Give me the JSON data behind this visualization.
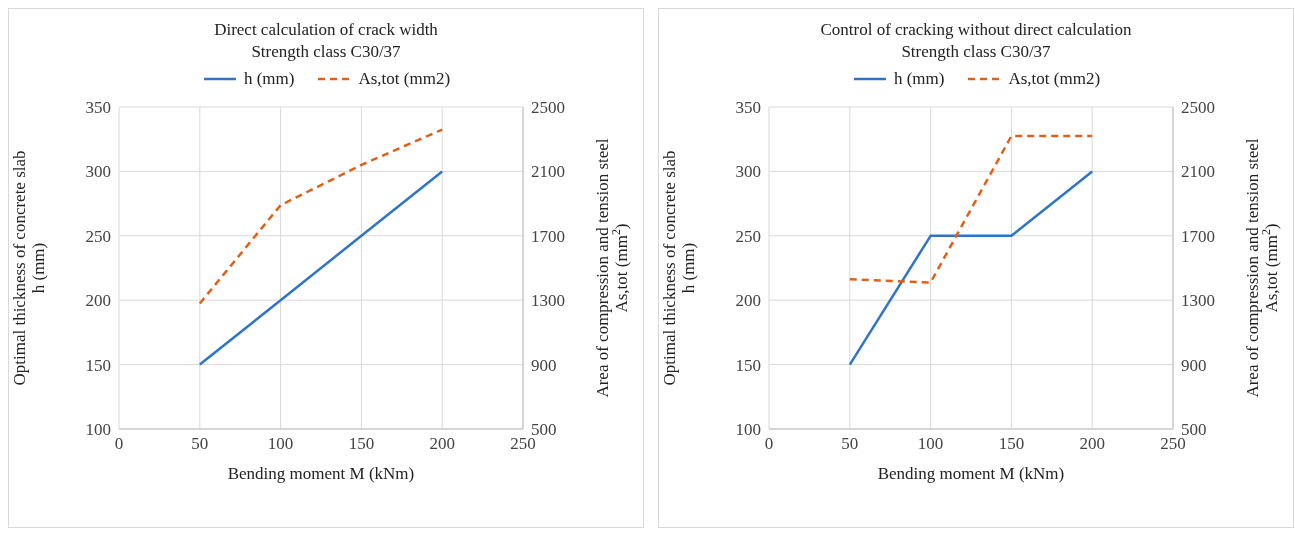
{
  "chart_data": [
    {
      "type": "line",
      "title": "Direct calculation of crack width\nStrength class C30/37",
      "xlabel": "Bending moment M (kNm)",
      "ylabel": "Optimal thickness of concrete slab\nh (mm)",
      "y2label": "Area of compression and tension steel\nAs,tot (mm$^{2}$)",
      "x": [
        50,
        100,
        150,
        200
      ],
      "series": [
        {
          "name": "h (mm)",
          "color": "#2e75c8",
          "values": [
            150,
            200,
            250,
            300
          ],
          "line_style": "solid"
        },
        {
          "name": "As,tot (mm2)",
          "color": "#e0601a",
          "values": [
            1280,
            1890,
            2140,
            2360
          ],
          "axis": "y2",
          "line_style": "dashed"
        }
      ],
      "xlim": [
        0,
        250
      ],
      "xticks": [
        0,
        50,
        100,
        150,
        200,
        250
      ],
      "ylim": [
        100,
        350
      ],
      "yticks": [
        100,
        150,
        200,
        250,
        300,
        350
      ],
      "y2lim": [
        500,
        2500
      ],
      "y2ticks": [
        500,
        900,
        1300,
        1700,
        2100,
        2500
      ],
      "grid": true,
      "legend": "top",
      "marker": "none"
    },
    {
      "type": "line",
      "title": "Control of cracking without direct calculation\nStrength class C30/37",
      "xlabel": "Bending moment M (kNm)",
      "ylabel": "Optimal thickness of concrete slab\nh (mm)",
      "y2label": "Area of compression and tension steel\nAs,tot (mm$^{2}$)",
      "x": [
        50,
        100,
        150,
        200
      ],
      "series": [
        {
          "name": "h (mm)",
          "color": "#2e75c8",
          "values": [
            150,
            250,
            250,
            300
          ],
          "line_style": "solid"
        },
        {
          "name": "As,tot (mm2)",
          "color": "#e0601a",
          "values": [
            1430,
            1410,
            2320,
            2320
          ],
          "axis": "y2",
          "line_style": "dashed"
        }
      ],
      "xlim": [
        0,
        250
      ],
      "xticks": [
        0,
        50,
        100,
        150,
        200,
        250
      ],
      "ylim": [
        100,
        350
      ],
      "yticks": [
        100,
        150,
        200,
        250,
        300,
        350
      ],
      "y2lim": [
        500,
        2500
      ],
      "y2ticks": [
        500,
        900,
        1300,
        1700,
        2100,
        2500
      ],
      "grid": true,
      "legend": "top",
      "marker": "none"
    }
  ]
}
